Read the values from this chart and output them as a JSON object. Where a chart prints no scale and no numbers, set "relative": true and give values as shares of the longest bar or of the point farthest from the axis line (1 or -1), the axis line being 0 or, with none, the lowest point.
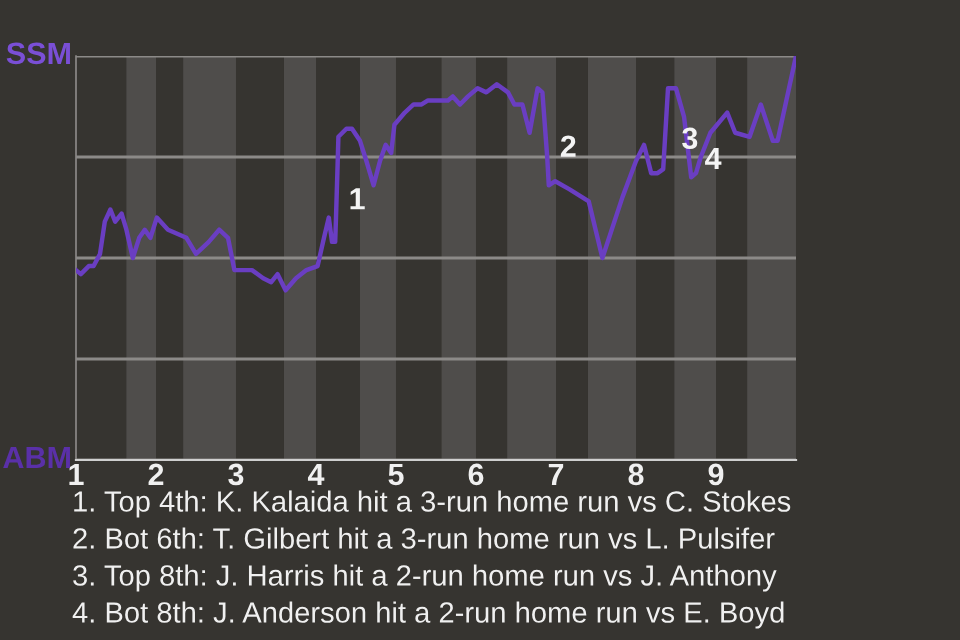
{
  "chart_data": {
    "type": "line",
    "relative": true,
    "x": [
      1.0,
      1.06,
      1.16,
      1.22,
      1.3,
      1.36,
      1.43,
      1.49,
      1.57,
      1.63,
      1.71,
      1.79,
      1.86,
      1.93,
      2.01,
      2.15,
      2.38,
      2.5,
      2.66,
      2.79,
      2.9,
      2.98,
      3.2,
      3.34,
      3.44,
      3.52,
      3.62,
      3.75,
      3.88,
      4.02,
      4.1,
      4.16,
      4.2,
      4.24,
      4.25,
      4.27,
      4.28,
      4.38,
      4.45,
      4.55,
      4.63,
      4.72,
      4.8,
      4.87,
      4.94,
      4.98,
      5.11,
      5.22,
      5.32,
      5.4,
      5.65,
      5.71,
      5.8,
      5.9,
      6.02,
      6.13,
      6.26,
      6.4,
      6.48,
      6.58,
      6.67,
      6.77,
      6.83,
      6.89,
      6.91,
      6.99,
      7.17,
      7.41,
      7.58,
      7.83,
      8.0,
      8.1,
      8.19,
      8.27,
      8.34,
      8.4,
      8.5,
      8.6,
      8.69,
      8.75,
      8.81,
      8.93,
      9.14,
      9.24,
      9.42,
      9.56,
      9.71,
      9.77,
      10
    ],
    "series": [
      {
        "color": "#6a3ec2",
        "values": [
          0.47,
          0.46,
          0.48,
          0.48,
          0.51,
          0.59,
          0.62,
          0.59,
          0.61,
          0.57,
          0.5,
          0.55,
          0.57,
          0.55,
          0.6,
          0.57,
          0.55,
          0.51,
          0.54,
          0.57,
          0.55,
          0.47,
          0.47,
          0.45,
          0.44,
          0.46,
          0.42,
          0.45,
          0.47,
          0.48,
          0.55,
          0.6,
          0.54,
          0.54,
          0.6,
          0.73,
          0.8,
          0.82,
          0.82,
          0.79,
          0.74,
          0.68,
          0.74,
          0.78,
          0.76,
          0.83,
          0.86,
          0.88,
          0.88,
          0.89,
          0.89,
          0.9,
          0.88,
          0.9,
          0.92,
          0.91,
          0.93,
          0.91,
          0.88,
          0.88,
          0.81,
          0.92,
          0.91,
          0.75,
          0.68,
          0.69,
          0.67,
          0.64,
          0.5,
          0.65,
          0.74,
          0.78,
          0.71,
          0.71,
          0.72,
          0.92,
          0.92,
          0.85,
          0.7,
          0.71,
          0.75,
          0.81,
          0.86,
          0.81,
          0.8,
          0.88,
          0.79,
          0.79,
          1.0
        ]
      }
    ],
    "xlim": [
      1,
      10
    ],
    "xticks": [
      1,
      2,
      3,
      4,
      5,
      6,
      7,
      8,
      9
    ],
    "grid": "y",
    "bands": [
      {
        "axis": "x",
        "from": 1.63,
        "to": 2,
        "color": "#4f4d4b"
      },
      {
        "axis": "x",
        "from": 2.34,
        "to": 3,
        "color": "#4f4d4b"
      },
      {
        "axis": "x",
        "from": 3.6,
        "to": 4,
        "color": "#4f4d4b"
      },
      {
        "axis": "x",
        "from": 4.55,
        "to": 5,
        "color": "#4f4d4b"
      },
      {
        "axis": "x",
        "from": 5.57,
        "to": 6,
        "color": "#4f4d4b"
      },
      {
        "axis": "x",
        "from": 6.39,
        "to": 7,
        "color": "#4f4d4b"
      },
      {
        "axis": "x",
        "from": 7.4,
        "to": 8,
        "color": "#4f4d4b"
      },
      {
        "axis": "x",
        "from": 8.48,
        "to": 9,
        "color": "#4f4d4b"
      },
      {
        "axis": "x",
        "from": 9.39,
        "to": 10,
        "color": "#4f4d4b"
      }
    ],
    "annotations": [
      "SSM",
      "ABM",
      {
        "text": "1",
        "x": 4.34,
        "y": 0.64
      },
      {
        "text": "2",
        "x": 6.98,
        "y": 0.77
      },
      {
        "text": "3",
        "x": 8.5,
        "y": 0.79
      },
      {
        "text": "4",
        "x": 8.79,
        "y": 0.74
      },
      "1. Top 4th: K. Kalaida hit a 3-run home run vs C. Stokes",
      "2. Bot 6th: T. Gilbert hit a 3-run home run vs L. Pulsifer",
      "3. Top 8th: J. Harris hit a 2-run home run vs J. Anthony",
      "4. Bot 8th: J. Anderson hit a 2-run home run vs E. Boyd"
    ]
  }
}
